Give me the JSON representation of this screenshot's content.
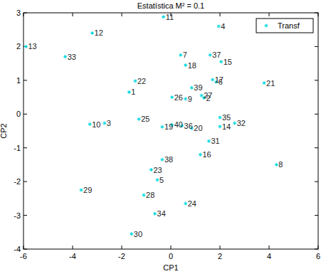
{
  "chart_data": {
    "type": "scatter",
    "title": "Estatística M² = 0.1",
    "x_label": "CP1",
    "y_label": "CP2",
    "xlim": [
      -6,
      6
    ],
    "xticks": [
      -6,
      -4,
      -2,
      0,
      2,
      4,
      6
    ],
    "ylim": [
      -4,
      3
    ],
    "yticks": [
      -4,
      -3,
      -2,
      -1,
      0,
      1,
      2,
      3
    ],
    "grid": false,
    "legend": "upper right",
    "series": [
      {
        "name": "Transf",
        "color": "#00d8e0",
        "marker": "asterisk",
        "labels": [
          "1",
          "2",
          "3",
          "4",
          "5",
          "6",
          "7",
          "8",
          "9",
          "10",
          "11",
          "12",
          "13",
          "14",
          "15",
          "16",
          "17",
          "18",
          "19",
          "20",
          "21",
          "22",
          "23",
          "24",
          "25",
          "26",
          "27",
          "28",
          "29",
          "30",
          "31",
          "32",
          "33",
          "34",
          "35",
          "36",
          "37",
          "38",
          "39",
          "40"
        ],
        "x": [
          -1.7,
          1.35,
          -2.7,
          1.95,
          -0.55,
          1.85,
          0.4,
          4.3,
          0.6,
          -3.3,
          -0.3,
          -3.2,
          -5.9,
          2.0,
          2.05,
          1.2,
          1.7,
          0.6,
          -0.35,
          0.85,
          3.8,
          -1.45,
          -0.8,
          0.6,
          -1.3,
          0.05,
          1.25,
          -1.1,
          -3.65,
          -1.6,
          1.55,
          2.6,
          -4.3,
          -0.65,
          2.0,
          0.45,
          1.6,
          -0.35,
          0.85,
          0.05
        ],
        "values": [
          0.65,
          0.48,
          -0.27,
          2.6,
          -1.95,
          0.95,
          1.75,
          -1.5,
          0.45,
          -0.3,
          2.88,
          2.4,
          2.0,
          -0.37,
          1.55,
          -1.2,
          1.02,
          1.45,
          -0.38,
          -0.42,
          0.92,
          0.98,
          -1.65,
          -2.65,
          -0.15,
          0.5,
          0.55,
          -2.4,
          -2.25,
          -3.55,
          -0.8,
          -0.27,
          1.7,
          -2.95,
          -0.1,
          -0.35,
          1.75,
          -1.35,
          0.78,
          -0.32
        ]
      }
    ]
  }
}
